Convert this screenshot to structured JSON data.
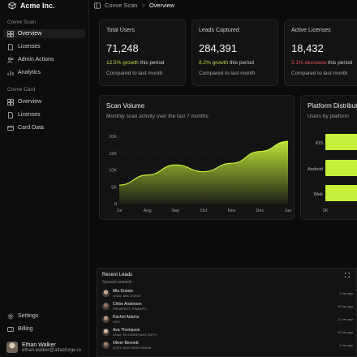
{
  "sidebar": {
    "brand": "Acme Inc.",
    "sections": [
      {
        "label": "Covve Scan",
        "items": [
          {
            "label": "Overview",
            "icon": "grid-icon",
            "active": true
          },
          {
            "label": "Licenses",
            "icon": "document-icon"
          },
          {
            "label": "Admin Actions",
            "icon": "users-icon"
          },
          {
            "label": "Analytics",
            "icon": "chart-icon"
          }
        ]
      },
      {
        "label": "Covve Card",
        "items": [
          {
            "label": "Overview",
            "icon": "grid-icon"
          },
          {
            "label": "Licenses",
            "icon": "document-icon"
          },
          {
            "label": "Card Data",
            "icon": "card-icon"
          }
        ]
      }
    ],
    "footer_items": [
      {
        "label": "Settings",
        "icon": "gear-icon"
      },
      {
        "label": "Billing",
        "icon": "wallet-icon"
      }
    ],
    "user": {
      "name": "Ethan Walker",
      "email": "ethan.walker@atlasforge.io"
    }
  },
  "topbar": {
    "crumb_parent": "Covve Scan",
    "separator": ">",
    "crumb_current": "Overview"
  },
  "stats": [
    {
      "title": "Total Users",
      "value": "71,248",
      "change": "12.5% growth",
      "direction": "up",
      "suffix": " this period",
      "compare": "Compared to last month"
    },
    {
      "title": "Leads Captured",
      "value": "284,391",
      "change": "8.2% growth",
      "direction": "up",
      "suffix": " this period",
      "compare": "Compared to last month"
    },
    {
      "title": "Active Licenses",
      "value": "18,432",
      "change": "3.1% decrease",
      "direction": "down",
      "suffix": " this period",
      "compare": "Compared to last month"
    }
  ],
  "scan_volume": {
    "title": "Scan Volume",
    "subtitle": "Monthly scan activity over the last 7 months"
  },
  "platform": {
    "title": "Platform Distribution",
    "subtitle": "Users by platform"
  },
  "chart_data": [
    {
      "type": "area",
      "title": "Scan Volume",
      "subtitle": "Monthly scan activity over the last 7 months",
      "x": [
        "Jul",
        "Aug",
        "Sep",
        "Oct",
        "Nov",
        "Dec",
        "Jan"
      ],
      "y_ticks": [
        "0",
        "5K",
        "10K",
        "15K",
        "20K"
      ],
      "ylim": [
        0,
        20000
      ],
      "series": [
        {
          "values": [
            5500,
            8500,
            11500,
            9500,
            12000,
            15500,
            18500
          ]
        }
      ],
      "grid": true,
      "color": "#c6ef3a"
    },
    {
      "type": "bar",
      "orientation": "horizontal",
      "title": "Platform Distribution",
      "subtitle": "Users by platform",
      "categories": [
        "iOS",
        "Android",
        "Web"
      ],
      "x_ticks": [
        "0K"
      ],
      "visible_values_K": [
        12,
        12,
        10
      ],
      "color": "#c6ef3a"
    }
  ],
  "recent_leads": {
    "title": "Recent Leads",
    "subtitle": "Synced contacts",
    "rows": [
      {
        "name": "Mia Dubois",
        "detail": "LEAD, ABC EVENT",
        "time": "2 hrs ago"
      },
      {
        "name": "Chloe Anderson",
        "detail": "PROSPECT, PINE&PO",
        "time": "10 hrs ago"
      },
      {
        "name": "Rachel Adams",
        "detail": "CEO",
        "time": "12 hrs ago"
      },
      {
        "name": "Ava Thompson",
        "detail": "LEAD, FUTUREPLANT EXPO",
        "time": "10 hrs ago"
      },
      {
        "name": "Oliver Bennett",
        "detail": "LOST, NEXTGEN FORUM",
        "time": "2 hrs ago"
      }
    ]
  },
  "colors": {
    "accent": "#c6ef3a",
    "background": "#0b0b0b",
    "card": "#131313",
    "positive": "#b5d94a",
    "negative": "#e05454"
  }
}
